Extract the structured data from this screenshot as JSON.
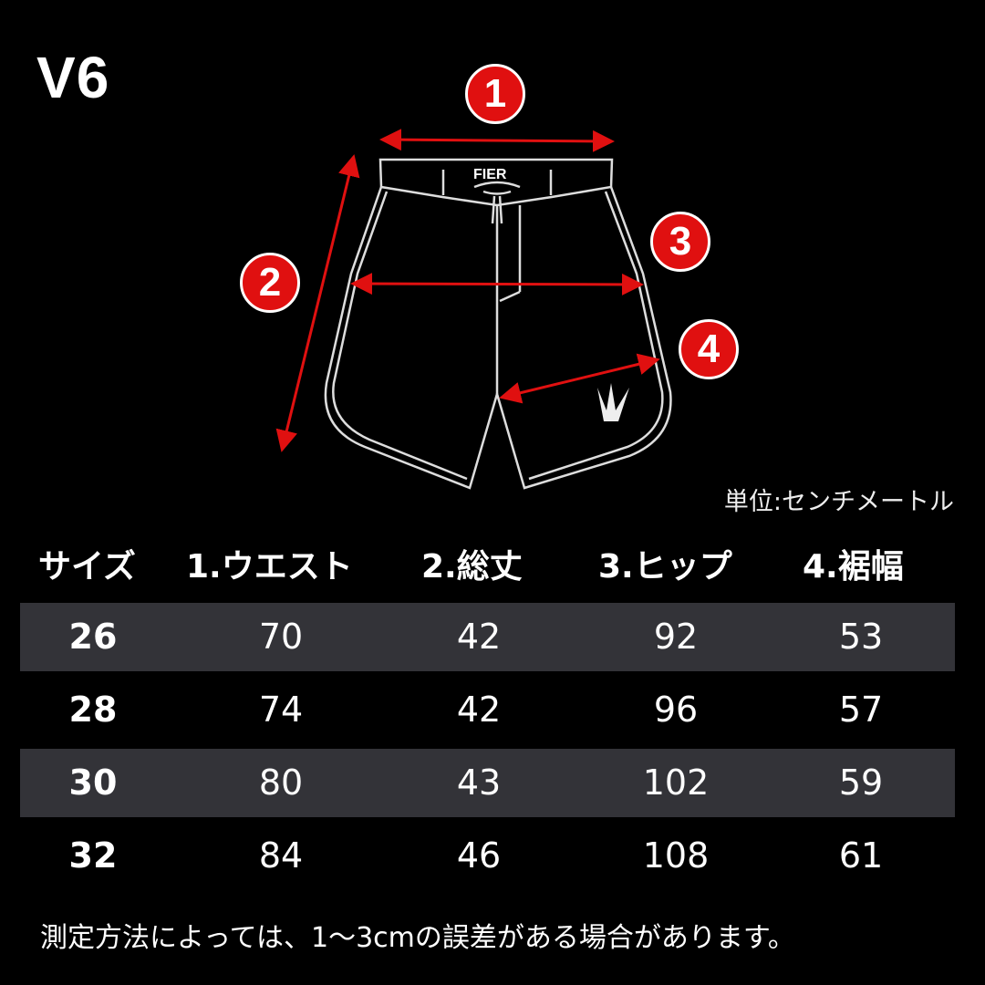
{
  "model": "V6",
  "diagram": {
    "markers": [
      "1",
      "2",
      "3",
      "4"
    ],
    "brand_text": "FIER",
    "line_color": "#e01010",
    "badge_color": "#e01010"
  },
  "unit_label": "単位:センチメートル",
  "table": {
    "headers": [
      "サイズ",
      "1.ウエスト",
      "2.総丈",
      "3.ヒップ",
      "4.裾幅"
    ],
    "rows": [
      [
        "26",
        "70",
        "42",
        "92",
        "53"
      ],
      [
        "28",
        "74",
        "42",
        "96",
        "57"
      ],
      [
        "30",
        "80",
        "43",
        "102",
        "59"
      ],
      [
        "32",
        "84",
        "46",
        "108",
        "61"
      ]
    ],
    "band_color": "#333338"
  },
  "note": "測定方法によっては、1〜3cmの誤差がある場合があります。"
}
